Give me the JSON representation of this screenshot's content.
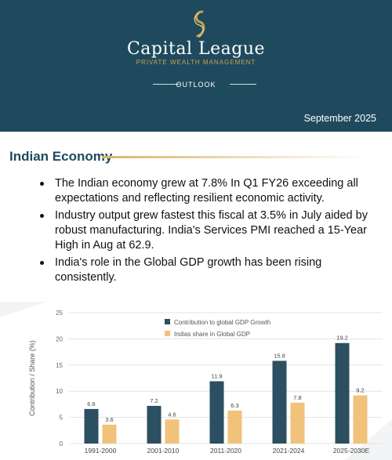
{
  "header": {
    "brand_name": "Capital League",
    "brand_tagline": "PRIVATE WEALTH MANAGEMENT",
    "section_label": "OUTLOOK",
    "date": "September 2025"
  },
  "colors": {
    "header_bg": "#1f4a5e",
    "gold": "#c9a24a",
    "series_contribution": "#2c4f62",
    "series_share": "#f0c27a"
  },
  "section": {
    "title": "Indian Economy",
    "bullets": [
      "The Indian economy grew at 7.8% In Q1 FY26 exceeding all expectations and reflecting resilient economic activity.",
      "Industry output grew fastest this fiscal at 3.5% in July aided by robust manufacturing. India's Services PMI reached a 15-Year High in Aug at 62.9.",
      "India's role in the Global GDP growth has been rising consistently."
    ]
  },
  "chart_data": {
    "type": "bar",
    "title": "",
    "xlabel": "",
    "ylabel": "Contribution / Share (%)",
    "ylim": [
      0,
      25
    ],
    "yticks": [
      0,
      5,
      10,
      15,
      20,
      25
    ],
    "grid": true,
    "legend_position": "top-left",
    "categories": [
      "1991-2000",
      "2001-2010",
      "2011-2020",
      "2021-2024",
      "2025-2030E"
    ],
    "series": [
      {
        "name": "Contribution to global GDP Growth",
        "values": [
          6.6,
          7.2,
          11.9,
          15.8,
          19.2
        ],
        "color": "#2c4f62"
      },
      {
        "name": "Indias share in Global GDP",
        "values": [
          3.6,
          4.6,
          6.3,
          7.8,
          9.2
        ],
        "color": "#f0c27a"
      }
    ]
  }
}
